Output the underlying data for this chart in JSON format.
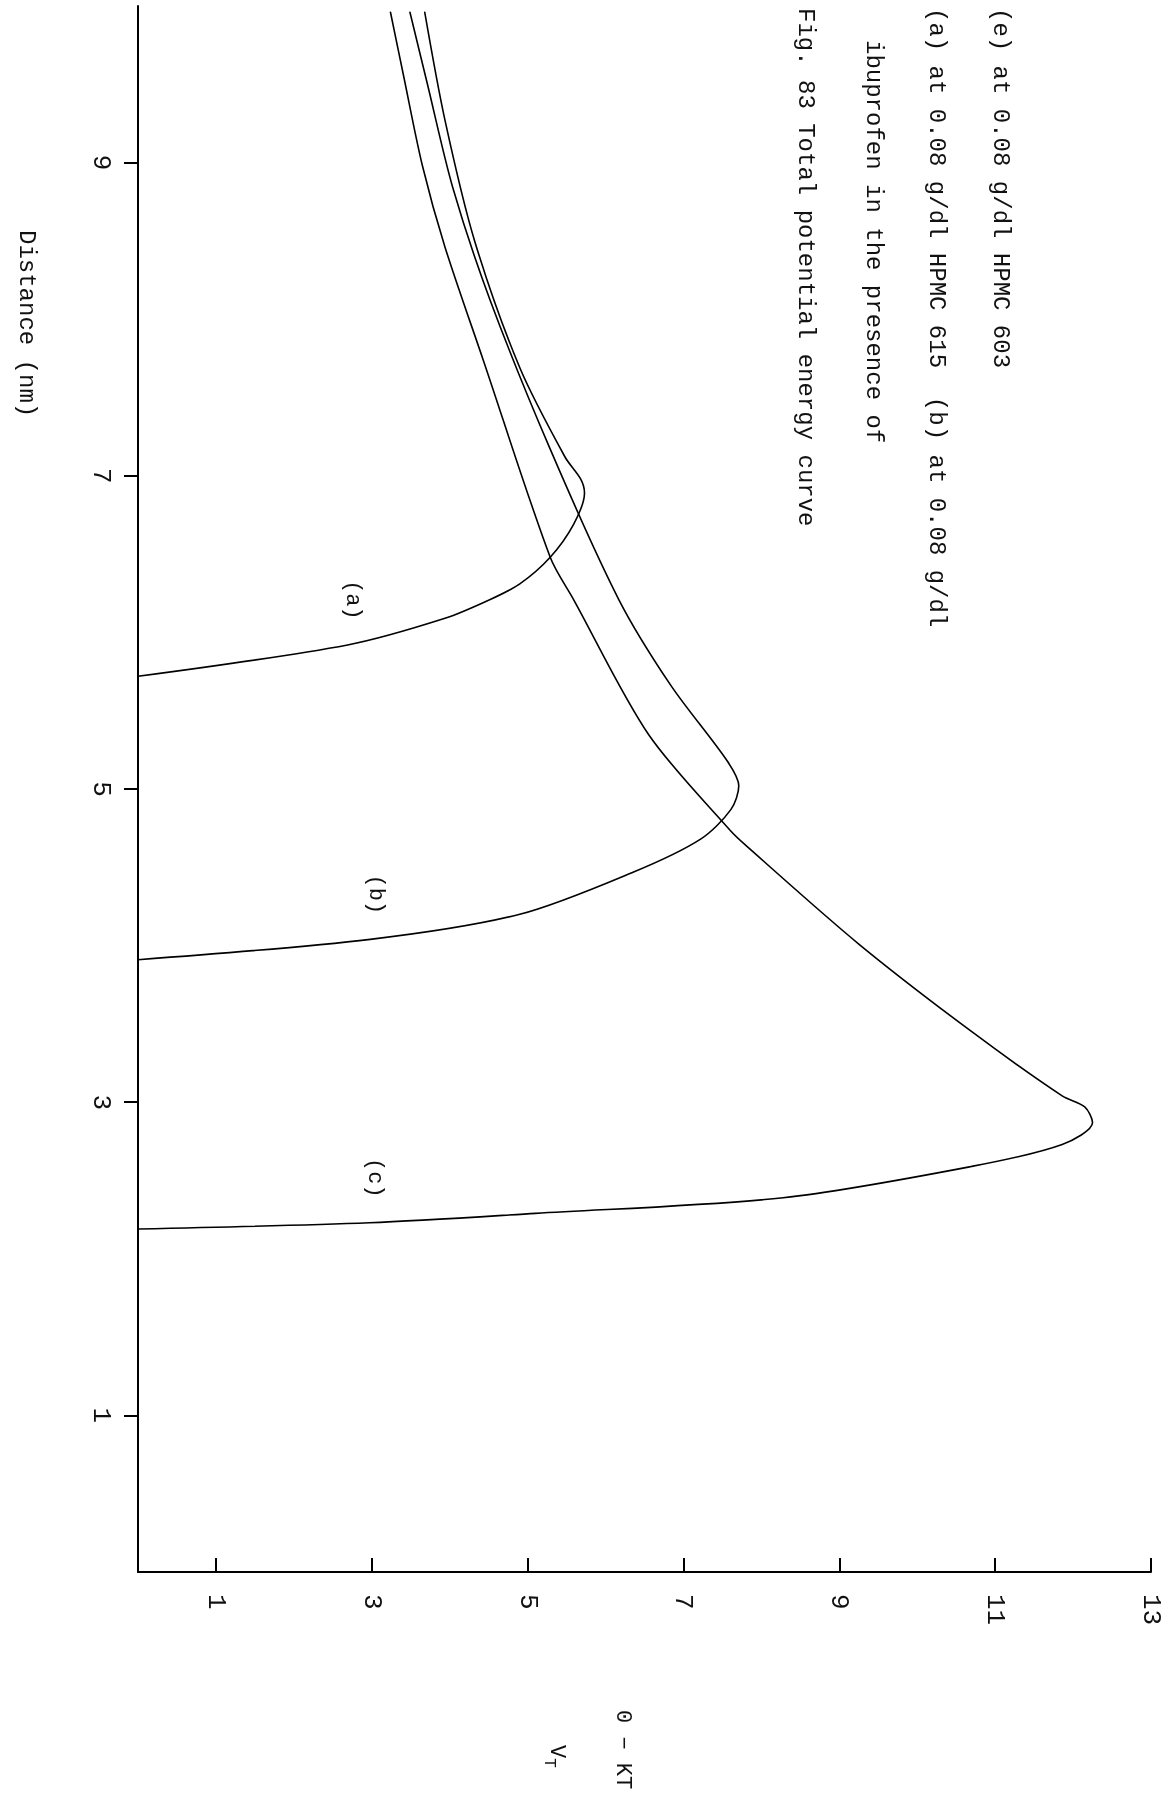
{
  "chart_data": {
    "type": "line",
    "title": "Fig. 83 Total potential energy curve",
    "subtitle": "ibuprofen in the presence of",
    "xlabel": "V$_{T}$\n0 − KT",
    "ylabel": "Distance (nm)",
    "annotations": [
      "(a) at 0.08 g/dl HPMC 615  (b) at 0.08 g/dl",
      "(e) at 0.08 g/dl HPMC 603"
    ],
    "xlim": [
      0,
      13
    ],
    "xticks": [
      1,
      3,
      5,
      7,
      9,
      11,
      13
    ],
    "ylim": [
      0,
      10
    ],
    "yticks": [
      1,
      3,
      5,
      7,
      9
    ],
    "marker": "none",
    "line_style": "solid",
    "series": [
      {
        "name": "(a)",
        "color": "#000000",
        "x": [
          0,
          2.69,
          3.94,
          4.52,
          4.9,
          5.29,
          5.59,
          5.73,
          5.68,
          5.48,
          4.9,
          4.32,
          3.94,
          3.68
        ],
        "values": [
          5.72,
          5.92,
          6.09,
          6.21,
          6.31,
          6.48,
          6.69,
          6.89,
          6.98,
          7.12,
          7.69,
          8.5,
          9.27,
          9.96
        ]
      },
      {
        "name": "(b)",
        "color": "#000000",
        "x": [
          0,
          2.98,
          4.9,
          6.36,
          7.22,
          7.61,
          7.71,
          7.56,
          6.84,
          6.17,
          5.29,
          4.52,
          4.04,
          3.71,
          3.49
        ],
        "values": [
          3.91,
          4.04,
          4.2,
          4.47,
          4.68,
          4.87,
          5.02,
          5.18,
          5.66,
          6.21,
          7.17,
          8.12,
          8.84,
          9.51,
          9.96
        ]
      },
      {
        "name": "(c)",
        "color": "#000000",
        "x": [
          0,
          2.97,
          5.1,
          8.28,
          10.7,
          11.86,
          12.25,
          12.15,
          11.86,
          10.7,
          9.25,
          7.8,
          7.61,
          6.55,
          5.59,
          5.29,
          4.43,
          3.94,
          3.65,
          3.41,
          3.24
        ],
        "values": [
          2.19,
          2.23,
          2.29,
          2.39,
          2.59,
          2.73,
          2.87,
          2.97,
          3.04,
          3.45,
          4.01,
          4.64,
          4.73,
          5.35,
          6.21,
          6.48,
          7.74,
          8.46,
          8.98,
          9.55,
          9.96
        ]
      }
    ]
  }
}
